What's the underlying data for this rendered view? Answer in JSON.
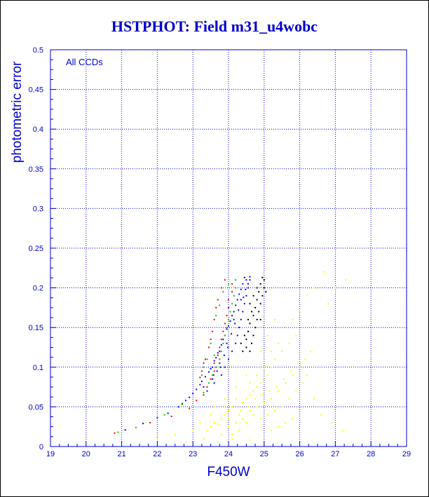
{
  "chart_data": {
    "type": "scatter",
    "title": "HSTPHOT: Field m31_u4wobc",
    "xlabel": "F450W",
    "ylabel": "photometric error",
    "annotation": "All CCDs",
    "xlim": [
      19,
      29
    ],
    "ylim": [
      0,
      0.5
    ],
    "xticks": [
      "19",
      "20",
      "21",
      "22",
      "23",
      "24",
      "25",
      "26",
      "27",
      "28",
      "29"
    ],
    "yticks": [
      "0",
      "0.05",
      "0.1",
      "0.15",
      "0.2",
      "0.25",
      "0.3",
      "0.35",
      "0.4",
      "0.45",
      "0.5"
    ],
    "grid": true,
    "axis_color": "#0000cc",
    "colors": {
      "blue": "#0000ff",
      "red": "#ff0000",
      "green": "#00cc00",
      "black": "#000000",
      "yellow": "#ffff00"
    },
    "series": [
      {
        "color": "#0000ff",
        "points": [
          [
            21.1,
            0.021
          ],
          [
            21.6,
            0.029
          ],
          [
            22.0,
            0.036
          ],
          [
            22.3,
            0.042
          ],
          [
            22.6,
            0.05
          ],
          [
            22.8,
            0.058
          ],
          [
            23.0,
            0.067
          ],
          [
            23.2,
            0.078
          ],
          [
            23.35,
            0.088
          ],
          [
            23.5,
            0.098
          ],
          [
            23.6,
            0.108
          ],
          [
            23.7,
            0.118
          ],
          [
            23.8,
            0.128
          ],
          [
            23.9,
            0.14
          ],
          [
            24.0,
            0.152
          ],
          [
            24.1,
            0.165
          ],
          [
            24.2,
            0.178
          ],
          [
            24.3,
            0.192
          ],
          [
            24.4,
            0.205
          ],
          [
            24.45,
            0.213
          ],
          [
            23.55,
            0.1
          ],
          [
            23.75,
            0.12
          ],
          [
            23.95,
            0.148
          ],
          [
            24.15,
            0.17
          ],
          [
            24.35,
            0.198
          ],
          [
            24.5,
            0.21
          ],
          [
            24.6,
            0.214
          ],
          [
            24.25,
            0.185
          ],
          [
            24.05,
            0.158
          ],
          [
            23.85,
            0.135
          ],
          [
            23.65,
            0.112
          ],
          [
            23.45,
            0.094
          ],
          [
            23.25,
            0.082
          ],
          [
            23.1,
            0.072
          ],
          [
            22.9,
            0.062
          ],
          [
            22.7,
            0.054
          ],
          [
            24.55,
            0.2
          ],
          [
            24.5,
            0.19
          ],
          [
            24.45,
            0.18
          ],
          [
            24.4,
            0.17
          ],
          [
            24.35,
            0.16
          ],
          [
            24.3,
            0.15
          ],
          [
            24.25,
            0.14
          ],
          [
            24.2,
            0.13
          ],
          [
            24.1,
            0.12
          ],
          [
            24.0,
            0.11
          ],
          [
            23.9,
            0.1
          ],
          [
            23.8,
            0.09
          ],
          [
            23.6,
            0.08
          ],
          [
            23.4,
            0.07
          ],
          [
            24.6,
            0.21
          ],
          [
            24.55,
            0.205
          ],
          [
            24.35,
            0.185
          ],
          [
            24.15,
            0.16
          ],
          [
            23.95,
            0.13
          ],
          [
            23.75,
            0.105
          ],
          [
            23.55,
            0.085
          ],
          [
            23.3,
            0.075
          ],
          [
            24.48,
            0.198
          ],
          [
            24.42,
            0.188
          ],
          [
            24.28,
            0.172
          ],
          [
            24.18,
            0.155
          ],
          [
            24.08,
            0.142
          ],
          [
            23.98,
            0.125
          ],
          [
            23.88,
            0.115
          ],
          [
            23.78,
            0.1
          ],
          [
            23.68,
            0.095
          ],
          [
            23.58,
            0.09
          ]
        ]
      },
      {
        "color": "#ff0000",
        "points": [
          [
            20.8,
            0.017
          ],
          [
            21.8,
            0.03
          ],
          [
            22.4,
            0.038
          ],
          [
            22.9,
            0.048
          ],
          [
            23.1,
            0.058
          ],
          [
            23.3,
            0.065
          ],
          [
            23.4,
            0.075
          ],
          [
            23.5,
            0.085
          ],
          [
            23.6,
            0.095
          ],
          [
            23.6,
            0.105
          ],
          [
            23.7,
            0.115
          ],
          [
            23.75,
            0.125
          ],
          [
            23.8,
            0.135
          ],
          [
            23.85,
            0.145
          ],
          [
            23.9,
            0.155
          ],
          [
            23.95,
            0.165
          ],
          [
            24.0,
            0.175
          ],
          [
            24.0,
            0.185
          ],
          [
            24.1,
            0.195
          ],
          [
            24.1,
            0.205
          ],
          [
            23.7,
            0.185
          ],
          [
            23.65,
            0.175
          ],
          [
            23.55,
            0.145
          ],
          [
            23.45,
            0.125
          ],
          [
            23.35,
            0.11
          ],
          [
            23.25,
            0.095
          ],
          [
            23.8,
            0.2
          ],
          [
            23.9,
            0.21
          ],
          [
            23.6,
            0.16
          ],
          [
            23.5,
            0.135
          ],
          [
            23.3,
            0.105
          ],
          [
            23.2,
            0.087
          ]
        ]
      },
      {
        "color": "#00cc00",
        "points": [
          [
            20.9,
            0.018
          ],
          [
            21.4,
            0.024
          ],
          [
            22.2,
            0.04
          ],
          [
            22.7,
            0.053
          ],
          [
            23.3,
            0.068
          ],
          [
            23.45,
            0.08
          ],
          [
            23.55,
            0.09
          ],
          [
            23.65,
            0.1
          ],
          [
            23.75,
            0.11
          ],
          [
            23.8,
            0.12
          ],
          [
            23.85,
            0.13
          ],
          [
            23.9,
            0.14
          ],
          [
            23.95,
            0.15
          ],
          [
            24.0,
            0.16
          ],
          [
            24.05,
            0.17
          ],
          [
            24.1,
            0.18
          ],
          [
            24.15,
            0.19
          ],
          [
            24.2,
            0.2
          ],
          [
            23.5,
            0.13
          ],
          [
            23.4,
            0.11
          ],
          [
            23.65,
            0.165
          ],
          [
            23.75,
            0.178
          ],
          [
            24.2,
            0.21
          ],
          [
            23.25,
            0.09
          ],
          [
            23.3,
            0.1
          ],
          [
            23.6,
            0.115
          ],
          [
            23.85,
            0.195
          ],
          [
            24.0,
            0.205
          ]
        ]
      },
      {
        "color": "#000000",
        "points": [
          [
            24.6,
            0.12
          ],
          [
            24.65,
            0.13
          ],
          [
            24.7,
            0.14
          ],
          [
            24.75,
            0.15
          ],
          [
            24.8,
            0.16
          ],
          [
            24.85,
            0.17
          ],
          [
            24.9,
            0.18
          ],
          [
            24.95,
            0.19
          ],
          [
            25.0,
            0.2
          ],
          [
            25.0,
            0.21
          ],
          [
            24.5,
            0.135
          ],
          [
            24.55,
            0.145
          ],
          [
            24.7,
            0.165
          ],
          [
            24.8,
            0.185
          ],
          [
            24.85,
            0.195
          ],
          [
            24.9,
            0.205
          ],
          [
            24.75,
            0.175
          ],
          [
            24.6,
            0.155
          ],
          [
            24.65,
            0.17
          ],
          [
            24.95,
            0.213
          ],
          [
            24.7,
            0.19
          ],
          [
            24.55,
            0.16
          ],
          [
            24.45,
            0.14
          ],
          [
            24.8,
            0.2
          ],
          [
            24.6,
            0.18
          ],
          [
            24.9,
            0.16
          ],
          [
            25.05,
            0.195
          ],
          [
            24.5,
            0.125
          ],
          [
            24.35,
            0.13
          ],
          [
            24.4,
            0.12
          ]
        ]
      },
      {
        "color": "#ffff00",
        "points": [
          [
            23.4,
            0.02
          ],
          [
            23.5,
            0.025
          ],
          [
            23.6,
            0.03
          ],
          [
            23.7,
            0.028
          ],
          [
            23.8,
            0.035
          ],
          [
            23.9,
            0.04
          ],
          [
            24.0,
            0.045
          ],
          [
            24.1,
            0.05
          ],
          [
            24.2,
            0.03
          ],
          [
            24.3,
            0.04
          ],
          [
            24.4,
            0.055
          ],
          [
            24.5,
            0.06
          ],
          [
            24.6,
            0.065
          ],
          [
            24.7,
            0.07
          ],
          [
            24.8,
            0.075
          ],
          [
            24.9,
            0.08
          ],
          [
            25.0,
            0.085
          ],
          [
            25.1,
            0.09
          ],
          [
            25.2,
            0.1
          ],
          [
            25.3,
            0.11
          ],
          [
            25.5,
            0.12
          ],
          [
            25.7,
            0.13
          ],
          [
            25.9,
            0.14
          ],
          [
            23.2,
            0.03
          ],
          [
            23.5,
            0.04
          ],
          [
            23.8,
            0.015
          ],
          [
            24.0,
            0.025
          ],
          [
            24.2,
            0.06
          ],
          [
            24.4,
            0.035
          ],
          [
            24.6,
            0.045
          ],
          [
            24.8,
            0.05
          ],
          [
            25.0,
            0.055
          ],
          [
            25.2,
            0.06
          ],
          [
            25.4,
            0.07
          ],
          [
            25.6,
            0.08
          ],
          [
            25.8,
            0.09
          ],
          [
            26.0,
            0.1
          ],
          [
            22.0,
            0.01
          ],
          [
            22.5,
            0.015
          ],
          [
            23.0,
            0.02
          ],
          [
            24.1,
            0.01
          ],
          [
            24.3,
            0.02
          ],
          [
            24.5,
            0.03
          ],
          [
            24.7,
            0.04
          ],
          [
            24.9,
            0.035
          ],
          [
            25.1,
            0.04
          ],
          [
            25.3,
            0.045
          ],
          [
            25.5,
            0.05
          ],
          [
            25.7,
            0.06
          ],
          [
            25.9,
            0.07
          ],
          [
            26.1,
            0.08
          ],
          [
            26.3,
            0.12
          ],
          [
            26.5,
            0.15
          ],
          [
            26.8,
            0.18
          ],
          [
            27.0,
            0.2
          ],
          [
            26.2,
            0.09
          ],
          [
            26.4,
            0.06
          ],
          [
            26.6,
            0.04
          ],
          [
            26.9,
            0.03
          ],
          [
            27.2,
            0.02
          ],
          [
            25.2,
            0.02
          ],
          [
            25.4,
            0.025
          ],
          [
            25.6,
            0.03
          ],
          [
            25.8,
            0.035
          ],
          [
            24.6,
            0.08
          ],
          [
            24.8,
            0.09
          ],
          [
            25.0,
            0.1
          ],
          [
            25.2,
            0.12
          ],
          [
            25.4,
            0.13
          ],
          [
            25.6,
            0.15
          ],
          [
            25.8,
            0.16
          ],
          [
            26.0,
            0.17
          ],
          [
            26.2,
            0.19
          ],
          [
            26.4,
            0.2
          ],
          [
            23.6,
            0.05
          ],
          [
            23.9,
            0.06
          ],
          [
            24.2,
            0.075
          ],
          [
            24.5,
            0.09
          ],
          [
            24.1,
            0.015
          ],
          [
            23.3,
            0.01
          ],
          [
            24.0,
            0.035
          ],
          [
            24.35,
            0.045
          ],
          [
            24.55,
            0.05
          ],
          [
            24.75,
            0.06
          ],
          [
            24.95,
            0.065
          ],
          [
            25.15,
            0.07
          ],
          [
            25.35,
            0.075
          ],
          [
            25.55,
            0.085
          ],
          [
            25.75,
            0.095
          ],
          [
            25.95,
            0.105
          ],
          [
            26.15,
            0.11
          ],
          [
            27.3,
            0.21
          ],
          [
            26.7,
            0.22
          ],
          [
            25.3,
            0.16
          ],
          [
            25.1,
            0.14
          ],
          [
            24.9,
            0.12
          ],
          [
            22.8,
            0.005
          ],
          [
            23.7,
            0.006
          ],
          [
            24.6,
            0.008
          ]
        ]
      }
    ]
  }
}
